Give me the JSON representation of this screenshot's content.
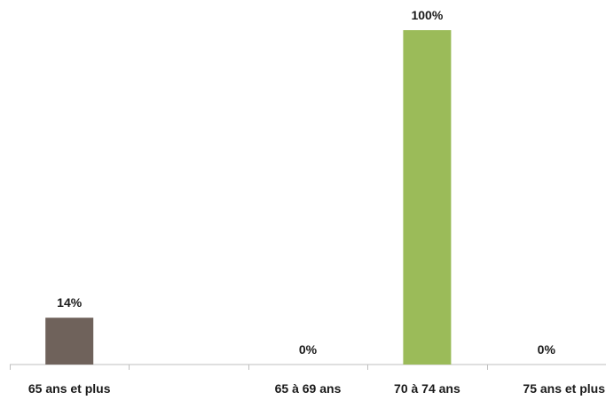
{
  "chart_data": {
    "type": "bar",
    "categories": [
      "65 ans et plus",
      "",
      "65 à 69 ans",
      "70 à 74 ans",
      "75 ans et plus"
    ],
    "values": [
      14,
      null,
      0,
      100,
      0
    ],
    "value_labels": [
      "14%",
      "",
      "0%",
      "100%",
      "0%"
    ],
    "colors": [
      "#6f625b",
      null,
      "#9bbb59",
      "#9bbb59",
      "#9bbb59"
    ],
    "ylim": [
      0,
      100
    ],
    "grid": false,
    "legend": "none"
  }
}
